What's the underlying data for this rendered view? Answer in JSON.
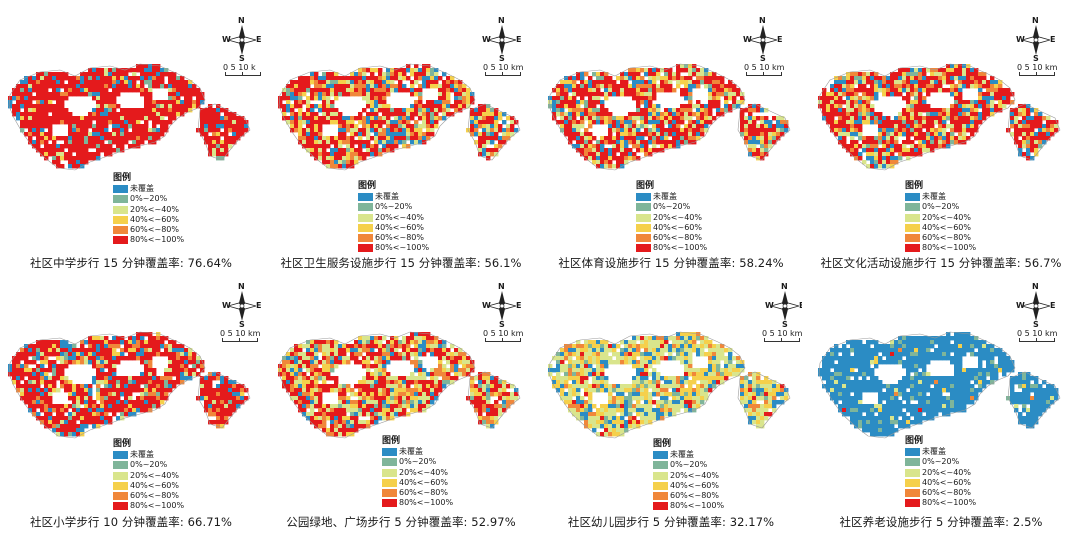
{
  "compass": {
    "n": "N",
    "s": "S",
    "w": "W",
    "e": "E"
  },
  "scale_labels": [
    "0  5  10 k",
    "0  5  10 km",
    "0  5  10 km",
    "0  5  10 km",
    "0  5  10 km",
    "0  5  10 km",
    "0  5  10 km",
    "0  5  10 km"
  ],
  "legend": {
    "title": "图例",
    "classes": [
      {
        "label": "未覆盖",
        "color": "#2b8cc4"
      },
      {
        "label": "0%~20%",
        "color": "#7fb59a"
      },
      {
        "label": "20%<~40%",
        "color": "#d9e58c"
      },
      {
        "label": "40%<~60%",
        "color": "#f5d04b"
      },
      {
        "label": "60%<~80%",
        "color": "#f0873a"
      },
      {
        "label": "80%<~100%",
        "color": "#e41a1c"
      }
    ]
  },
  "panels": [
    {
      "caption": "社区中学步行 15 分钟覆盖率: 76.64%",
      "weights": [
        0.08,
        0.04,
        0.03,
        0.03,
        0.05,
        0.77
      ]
    },
    {
      "caption": "社区卫生服务设施步行 15 分钟覆盖率: 56.1%",
      "weights": [
        0.12,
        0.04,
        0.13,
        0.12,
        0.14,
        0.45
      ]
    },
    {
      "caption": "社区体育设施步行 15 分钟覆盖率: 58.24%",
      "weights": [
        0.14,
        0.04,
        0.1,
        0.1,
        0.12,
        0.5
      ]
    },
    {
      "caption": "社区文化活动设施步行 15 分钟覆盖率: 56.7%",
      "weights": [
        0.15,
        0.05,
        0.09,
        0.1,
        0.12,
        0.49
      ]
    },
    {
      "caption": "社区小学步行 10 分钟覆盖率: 66.71%",
      "weights": [
        0.12,
        0.04,
        0.06,
        0.06,
        0.1,
        0.62
      ]
    },
    {
      "caption": "公园绿地、广场步行 5 分钟覆盖率: 52.97%",
      "weights": [
        0.08,
        0.04,
        0.18,
        0.16,
        0.16,
        0.38
      ]
    },
    {
      "caption": "社区幼儿园步行 5 分钟覆盖率: 32.17%",
      "weights": [
        0.16,
        0.06,
        0.38,
        0.24,
        0.1,
        0.06
      ]
    },
    {
      "caption": "社区养老设施步行 5 分钟覆盖率: 2.5%",
      "weights": [
        0.86,
        0.07,
        0.03,
        0.02,
        0.01,
        0.01
      ]
    }
  ]
}
